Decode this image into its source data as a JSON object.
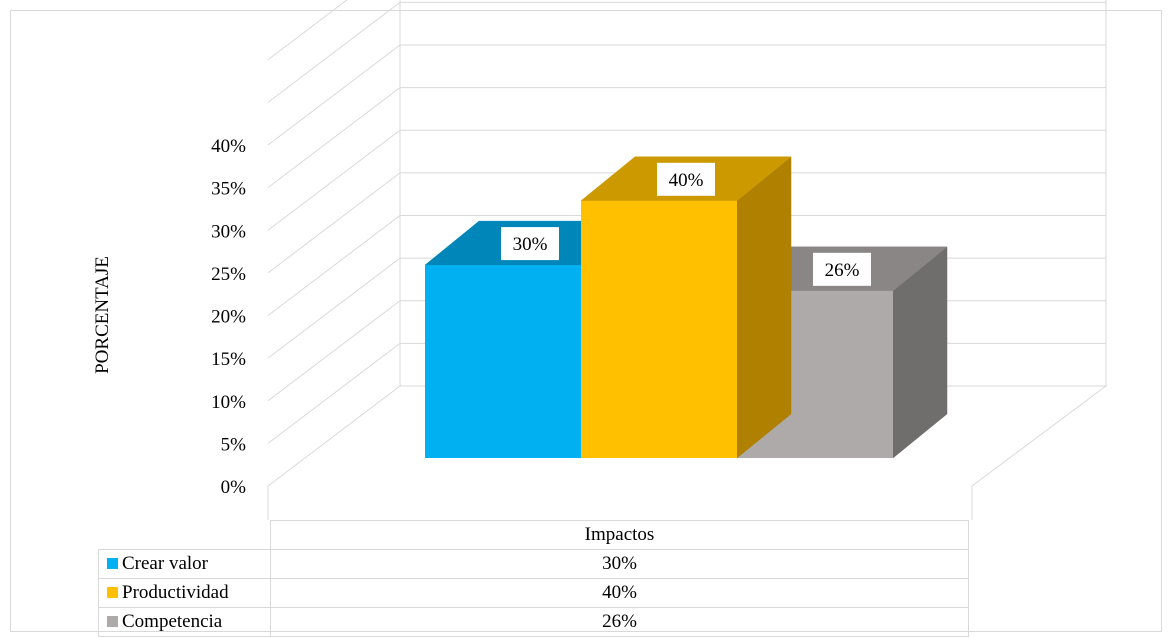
{
  "chart_data": {
    "type": "bar",
    "categories": [
      "Impactos"
    ],
    "series": [
      {
        "name": "Crear valor",
        "values": [
          30
        ],
        "label": "30%"
      },
      {
        "name": "Productividad",
        "values": [
          40
        ],
        "label": "40%"
      },
      {
        "name": "Competencia",
        "values": [
          26
        ],
        "label": "26%"
      }
    ],
    "ylabel": "PORCENTAJE",
    "xlabel": "",
    "ylim": [
      0,
      40
    ],
    "yticks": [
      0,
      5,
      10,
      15,
      20,
      25,
      30,
      35,
      40
    ],
    "ytick_labels": [
      "0%",
      "5%",
      "10%",
      "15%",
      "20%",
      "25%",
      "30%",
      "35%",
      "40%"
    ],
    "grid": true,
    "legend": "data-table-below"
  },
  "colors": {
    "Crear valor": {
      "front": "#00b0f0",
      "top": "#0086b8",
      "side": "#0073a0"
    },
    "Productividad": {
      "front": "#ffc000",
      "top": "#cc9900",
      "side": "#b08000"
    },
    "Competencia": {
      "front": "#aeaaaa",
      "top": "#8a8686",
      "side": "#706d6d"
    }
  }
}
